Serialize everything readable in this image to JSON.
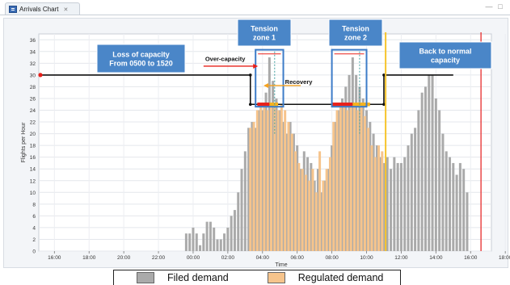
{
  "window": {
    "tab_title": "Arrivals Chart",
    "tab_close": "✕",
    "controls": [
      "—",
      "□"
    ]
  },
  "chart_data": {
    "type": "bar",
    "title": "",
    "xlabel": "Time",
    "ylabel": "Flights per Hour",
    "ylim": [
      0,
      37
    ],
    "yticks": [
      0,
      2,
      4,
      6,
      8,
      10,
      12,
      14,
      16,
      18,
      20,
      22,
      24,
      26,
      28,
      30,
      32,
      34,
      36
    ],
    "xlim": [
      15.1,
      21.2
    ],
    "x_tick_labels": [
      "16:00",
      "18:00",
      "20:00",
      "22:00",
      "00:00",
      "02:00",
      "04:00",
      "06:00",
      "08:00",
      "10:00",
      "12:00",
      "14:00",
      "16:00",
      "18:00",
      "20:00"
    ],
    "grid": true,
    "legend_position": "bottom",
    "series": [
      {
        "name": "Filed demand",
        "color": "#aaaaaa"
      },
      {
        "name": "Regulated demand",
        "color": "#f6c48c"
      }
    ],
    "filed_demand": [
      {
        "t": 23.6,
        "v": 3
      },
      {
        "t": 23.8,
        "v": 3
      },
      {
        "t": 24.0,
        "v": 4
      },
      {
        "t": 24.2,
        "v": 3
      },
      {
        "t": 24.4,
        "v": 1
      },
      {
        "t": 24.6,
        "v": 3
      },
      {
        "t": 24.8,
        "v": 5
      },
      {
        "t": 25.0,
        "v": 5
      },
      {
        "t": 25.2,
        "v": 4
      },
      {
        "t": 25.4,
        "v": 2
      },
      {
        "t": 25.6,
        "v": 2
      },
      {
        "t": 25.8,
        "v": 3
      },
      {
        "t": 26.0,
        "v": 4
      },
      {
        "t": 26.2,
        "v": 6
      },
      {
        "t": 26.4,
        "v": 7
      },
      {
        "t": 26.6,
        "v": 10
      },
      {
        "t": 26.8,
        "v": 14
      },
      {
        "t": 27.0,
        "v": 17
      },
      {
        "t": 27.2,
        "v": 21
      },
      {
        "t": 27.4,
        "v": 22
      },
      {
        "t": 27.6,
        "v": 21
      },
      {
        "t": 27.8,
        "v": 24
      },
      {
        "t": 28.0,
        "v": 24
      },
      {
        "t": 28.2,
        "v": 27
      },
      {
        "t": 28.4,
        "v": 33
      },
      {
        "t": 28.6,
        "v": 29
      },
      {
        "t": 28.8,
        "v": 26
      },
      {
        "t": 29.0,
        "v": 24
      },
      {
        "t": 29.2,
        "v": 22
      },
      {
        "t": 29.4,
        "v": 20
      },
      {
        "t": 29.6,
        "v": 22
      },
      {
        "t": 29.8,
        "v": 20
      },
      {
        "t": 30.0,
        "v": 18
      },
      {
        "t": 30.2,
        "v": 14
      },
      {
        "t": 30.4,
        "v": 17
      },
      {
        "t": 30.6,
        "v": 16
      },
      {
        "t": 30.8,
        "v": 15
      },
      {
        "t": 31.0,
        "v": 12
      },
      {
        "t": 31.2,
        "v": 14
      },
      {
        "t": 31.4,
        "v": 10
      },
      {
        "t": 31.6,
        "v": 12
      },
      {
        "t": 31.8,
        "v": 14
      },
      {
        "t": 32.0,
        "v": 18
      },
      {
        "t": 32.2,
        "v": 22
      },
      {
        "t": 32.4,
        "v": 24
      },
      {
        "t": 32.6,
        "v": 26
      },
      {
        "t": 32.8,
        "v": 28
      },
      {
        "t": 33.0,
        "v": 30
      },
      {
        "t": 33.2,
        "v": 33
      },
      {
        "t": 33.4,
        "v": 30
      },
      {
        "t": 33.6,
        "v": 28
      },
      {
        "t": 33.8,
        "v": 26
      },
      {
        "t": 34.0,
        "v": 24
      },
      {
        "t": 34.2,
        "v": 22
      },
      {
        "t": 34.4,
        "v": 20
      },
      {
        "t": 34.6,
        "v": 18
      },
      {
        "t": 34.8,
        "v": 16
      },
      {
        "t": 35.0,
        "v": 15
      },
      {
        "t": 35.2,
        "v": 16
      },
      {
        "t": 35.4,
        "v": 14
      },
      {
        "t": 35.6,
        "v": 16
      },
      {
        "t": 35.8,
        "v": 15
      },
      {
        "t": 36.0,
        "v": 15
      },
      {
        "t": 36.2,
        "v": 16
      },
      {
        "t": 36.4,
        "v": 18
      },
      {
        "t": 36.6,
        "v": 20
      },
      {
        "t": 36.8,
        "v": 21
      },
      {
        "t": 37.0,
        "v": 24
      },
      {
        "t": 37.2,
        "v": 27
      },
      {
        "t": 37.4,
        "v": 28
      },
      {
        "t": 37.6,
        "v": 30
      },
      {
        "t": 37.8,
        "v": 30
      },
      {
        "t": 38.0,
        "v": 26
      },
      {
        "t": 38.2,
        "v": 24
      },
      {
        "t": 38.4,
        "v": 20
      },
      {
        "t": 38.6,
        "v": 17
      },
      {
        "t": 38.8,
        "v": 16
      },
      {
        "t": 39.0,
        "v": 15
      },
      {
        "t": 39.2,
        "v": 13
      },
      {
        "t": 39.4,
        "v": 15
      },
      {
        "t": 39.6,
        "v": 14
      },
      {
        "t": 39.8,
        "v": 10
      }
    ],
    "regulated_demand": [
      {
        "t": 27.3,
        "v": 21
      },
      {
        "t": 27.5,
        "v": 22
      },
      {
        "t": 27.7,
        "v": 24
      },
      {
        "t": 27.9,
        "v": 25
      },
      {
        "t": 28.1,
        "v": 25
      },
      {
        "t": 28.3,
        "v": 24
      },
      {
        "t": 28.5,
        "v": 25
      },
      {
        "t": 28.7,
        "v": 25
      },
      {
        "t": 28.9,
        "v": 24
      },
      {
        "t": 29.1,
        "v": 25
      },
      {
        "t": 29.3,
        "v": 24
      },
      {
        "t": 29.5,
        "v": 22
      },
      {
        "t": 29.7,
        "v": 20
      },
      {
        "t": 29.9,
        "v": 17
      },
      {
        "t": 30.1,
        "v": 15
      },
      {
        "t": 30.3,
        "v": 14
      },
      {
        "t": 30.5,
        "v": 13
      },
      {
        "t": 30.7,
        "v": 12
      },
      {
        "t": 30.9,
        "v": 14
      },
      {
        "t": 31.1,
        "v": 10
      },
      {
        "t": 31.3,
        "v": 17
      },
      {
        "t": 31.5,
        "v": 12
      },
      {
        "t": 31.7,
        "v": 14
      },
      {
        "t": 31.9,
        "v": 16
      },
      {
        "t": 32.1,
        "v": 22
      },
      {
        "t": 32.3,
        "v": 24
      },
      {
        "t": 32.5,
        "v": 25
      },
      {
        "t": 32.7,
        "v": 25
      },
      {
        "t": 32.9,
        "v": 24
      },
      {
        "t": 33.1,
        "v": 25
      },
      {
        "t": 33.3,
        "v": 25
      },
      {
        "t": 33.5,
        "v": 24
      },
      {
        "t": 33.7,
        "v": 25
      },
      {
        "t": 33.9,
        "v": 23
      },
      {
        "t": 34.1,
        "v": 21
      },
      {
        "t": 34.3,
        "v": 18
      },
      {
        "t": 34.5,
        "v": 16
      },
      {
        "t": 34.7,
        "v": 18
      },
      {
        "t": 34.9,
        "v": 17
      }
    ],
    "capacity_line": {
      "color": "#111111",
      "points": [
        [
          15.1,
          30
        ],
        [
          27.3,
          30
        ],
        [
          27.3,
          25
        ],
        [
          35.0,
          25
        ],
        [
          35.0,
          30
        ],
        [
          39.0,
          30
        ]
      ]
    },
    "tension_bars": [
      {
        "from": 27.7,
        "to": 28.4,
        "v": 25,
        "color": "#e8201a"
      },
      {
        "from": 28.4,
        "to": 28.9,
        "v": 25,
        "color": "#f6b21e"
      },
      {
        "from": 32.0,
        "to": 33.2,
        "v": 25,
        "color": "#e8201a"
      },
      {
        "from": 33.2,
        "to": 34.2,
        "v": 25,
        "color": "#f6b21e"
      }
    ],
    "tension_zones": [
      {
        "from": 27.6,
        "to": 29.2,
        "dash_at": 28.7
      },
      {
        "from": 32.0,
        "to": 34.0,
        "dash_at": 33.6
      }
    ],
    "end_marker_t": 35.1,
    "current_time_t": 40.6,
    "annotations": {
      "loss_of_capacity": "Loss of capacity\nFrom 0500 to 1520",
      "tension_zone_1": "Tension\nzone 1",
      "tension_zone_2": "Tension\nzone 2",
      "back_to_normal": "Back to normal\ncapacity",
      "over_capacity": "Over-capacity",
      "recovery": "Recovery"
    },
    "colors": {
      "annotation_box": "#4a86c8",
      "zone_border": "#3d7cc8",
      "capacity": "#111111",
      "capacity_start_marker": "#e8201a",
      "over_capacity_arrow": "#e8201a",
      "recovery_arrow": "#f6a21e",
      "end_marker": "#f6c42c",
      "current_time": "#e83a3a"
    }
  }
}
